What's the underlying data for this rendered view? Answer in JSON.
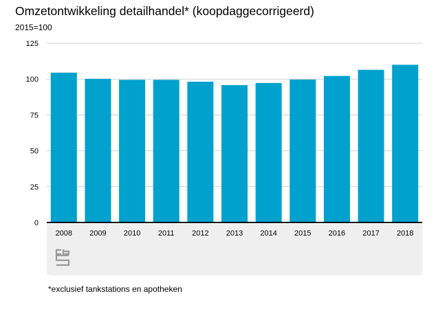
{
  "title": "Omzetontwikkeling detailhandel* (koopdaggecorrigeerd)",
  "subtitle": "2015=100",
  "footnote": "*exclusief tankstations en apotheken",
  "logo": "cbs-logo-icon",
  "colors": {
    "bar": "#00a1cd",
    "grid": "#d0d0d0",
    "axis": "#000000",
    "band": "#efefef"
  },
  "chart_data": {
    "type": "bar",
    "categories": [
      "2008",
      "2009",
      "2010",
      "2011",
      "2012",
      "2013",
      "2014",
      "2015",
      "2016",
      "2017",
      "2018"
    ],
    "values": [
      104.5,
      100.2,
      99.5,
      99.5,
      98.2,
      95.8,
      97.3,
      99.7,
      102.2,
      106.5,
      110.0
    ],
    "ylim": [
      0,
      125
    ],
    "yticks": [
      0,
      25,
      50,
      75,
      100,
      125
    ],
    "xlabel": "",
    "ylabel": "",
    "grid": true,
    "legend": "none"
  }
}
